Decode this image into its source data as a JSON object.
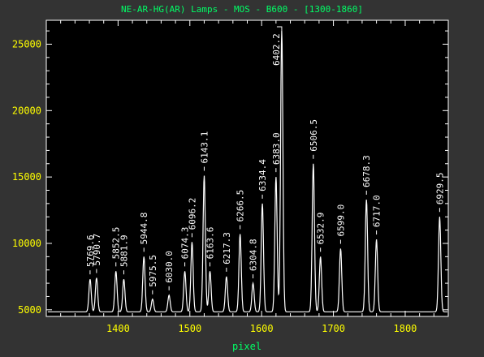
{
  "chart_data": {
    "type": "line",
    "title": "NE-AR-HG(AR) Lamps - MOS - B600 - [1300-1860]",
    "xlabel": "pixel",
    "ylabel": "",
    "xlim": [
      1300,
      1860
    ],
    "ylim": [
      4500,
      26800
    ],
    "x_ticks": [
      1400,
      1500,
      1600,
      1700,
      1800
    ],
    "y_ticks": [
      5000,
      10000,
      15000,
      20000,
      25000
    ],
    "baseline": 4850,
    "series": [
      {
        "peaks": [
          {
            "x": 1361,
            "y": 7300
          },
          {
            "x": 1370,
            "y": 7400
          },
          {
            "x": 1397,
            "y": 7900
          },
          {
            "x": 1408,
            "y": 7300
          },
          {
            "x": 1436,
            "y": 9000
          },
          {
            "x": 1448,
            "y": 5800
          },
          {
            "x": 1471,
            "y": 6100
          },
          {
            "x": 1493,
            "y": 7900
          },
          {
            "x": 1503,
            "y": 10100
          },
          {
            "x": 1520,
            "y": 15100
          },
          {
            "x": 1528,
            "y": 7900
          },
          {
            "x": 1551,
            "y": 7500
          },
          {
            "x": 1570,
            "y": 10700
          },
          {
            "x": 1588,
            "y": 7000
          },
          {
            "x": 1601,
            "y": 13000
          },
          {
            "x": 1620,
            "y": 15000
          },
          {
            "x": 1628,
            "y": 26000
          },
          {
            "x": 1672,
            "y": 16000
          },
          {
            "x": 1682,
            "y": 9000
          },
          {
            "x": 1710,
            "y": 9600
          },
          {
            "x": 1746,
            "y": 13300
          },
          {
            "x": 1760,
            "y": 10300
          },
          {
            "x": 1848,
            "y": 12000
          }
        ]
      }
    ],
    "annotations": [
      {
        "text": "5769.6",
        "x": 1361
      },
      {
        "text": "5790.7",
        "x": 1370
      },
      {
        "text": "5852.5",
        "x": 1397
      },
      {
        "text": "5881.9",
        "x": 1408
      },
      {
        "text": "5944.8",
        "x": 1436
      },
      {
        "text": "5975.5",
        "x": 1448
      },
      {
        "text": "6030.0",
        "x": 1471
      },
      {
        "text": "6074.3",
        "x": 1493
      },
      {
        "text": "6096.2",
        "x": 1503
      },
      {
        "text": "6143.1",
        "x": 1520
      },
      {
        "text": "6163.6",
        "x": 1528
      },
      {
        "text": "6217.3",
        "x": 1551
      },
      {
        "text": "6266.5",
        "x": 1570
      },
      {
        "text": "6304.8",
        "x": 1588
      },
      {
        "text": "6334.4",
        "x": 1601
      },
      {
        "text": "6383.0",
        "x": 1620
      },
      {
        "text": "6402.2",
        "x": 1628
      },
      {
        "text": "6506.5",
        "x": 1672
      },
      {
        "text": "6532.9",
        "x": 1682
      },
      {
        "text": "6599.0",
        "x": 1710
      },
      {
        "text": "6678.3",
        "x": 1746
      },
      {
        "text": "6717.0",
        "x": 1760
      },
      {
        "text": "6929.5",
        "x": 1848
      }
    ],
    "colors": {
      "background": "#333333",
      "plot_bg": "#000000",
      "frame": "#ffffff",
      "line": "#ffffff",
      "title": "#00ff66",
      "tick_labels": "#ffff00",
      "xlabel": "#00ff66",
      "annotation": "#ffffff"
    }
  }
}
